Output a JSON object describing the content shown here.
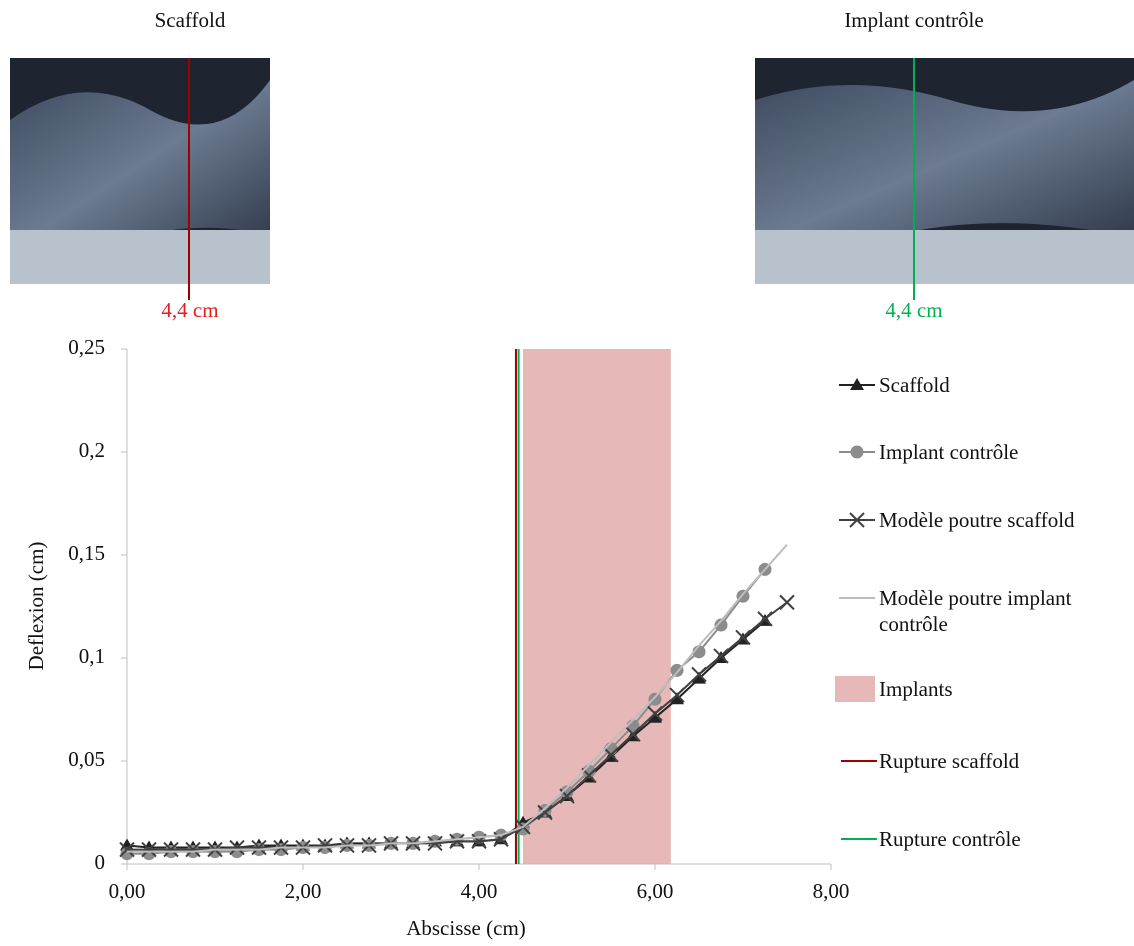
{
  "images": [
    {
      "title": "Scaffold",
      "label": "4,4 cm",
      "color": "#c00000"
    },
    {
      "title": "Implant contrôle",
      "label": "4,4 cm",
      "color": "#00b050"
    }
  ],
  "chart_data": {
    "type": "line",
    "x_label": "Abscisse (cm)",
    "y_label": "Deflexion (cm)",
    "x": [
      0,
      0.25,
      0.5,
      0.75,
      1,
      1.25,
      1.5,
      1.75,
      2,
      2.25,
      2.5,
      2.75,
      3,
      3.25,
      3.5,
      3.75,
      4,
      4.25,
      4.5,
      4.75,
      5,
      5.25,
      5.5,
      5.75,
      6,
      6.25,
      6.5,
      6.75,
      7,
      7.25,
      7.5
    ],
    "series": [
      {
        "name": "Scaffold",
        "color": "#222222",
        "marker": "triangle",
        "values": [
          0.009,
          0.008,
          0.008,
          0.008,
          0.008,
          0.008,
          0.009,
          0.009,
          0.009,
          0.009,
          0.01,
          0.01,
          0.01,
          0.01,
          0.011,
          0.011,
          0.011,
          0.012,
          0.02,
          0.025,
          0.033,
          0.042,
          0.052,
          0.062,
          0.071,
          0.08,
          0.09,
          0.1,
          0.109,
          0.118,
          null
        ]
      },
      {
        "name": "Implant contrôle",
        "color": "#8c8c8c",
        "marker": "circle",
        "values": [
          0.005,
          0.005,
          0.006,
          0.006,
          0.006,
          0.006,
          0.007,
          0.007,
          0.008,
          0.008,
          0.009,
          0.009,
          0.01,
          0.01,
          0.011,
          0.012,
          0.013,
          0.014,
          0.017,
          0.026,
          0.035,
          0.045,
          0.056,
          0.067,
          0.08,
          0.094,
          0.103,
          0.116,
          0.13,
          0.143,
          null
        ]
      },
      {
        "name": "Modèle poutre scaffold",
        "color": "#404040",
        "marker": "cross",
        "values": [
          0.007,
          0.007,
          0.007,
          0.007,
          0.007,
          0.008,
          0.008,
          0.008,
          0.008,
          0.009,
          0.009,
          0.009,
          0.01,
          0.01,
          0.01,
          0.011,
          0.011,
          0.012,
          0.018,
          0.025,
          0.033,
          0.043,
          0.053,
          0.063,
          0.073,
          0.082,
          0.092,
          0.101,
          0.11,
          0.119,
          0.127
        ]
      },
      {
        "name": "Modèle poutre implant contrôle",
        "color": "#bdbdbd",
        "marker": "none",
        "values": [
          0.006,
          0.006,
          0.006,
          0.006,
          0.007,
          0.007,
          0.007,
          0.008,
          0.008,
          0.008,
          0.009,
          0.009,
          0.01,
          0.01,
          0.011,
          0.012,
          0.013,
          0.014,
          0.018,
          0.027,
          0.037,
          0.048,
          0.059,
          0.07,
          0.081,
          0.093,
          0.106,
          0.118,
          0.131,
          0.143,
          0.155
        ]
      }
    ],
    "span": {
      "name": "Implants",
      "x": [
        4.5,
        6.18
      ],
      "color": "#e6b8b7"
    },
    "vlines": [
      {
        "name": "Rupture scaffold",
        "x": 4.42,
        "color": "#a00000"
      },
      {
        "name": "Rupture contrôle",
        "x": 4.45,
        "color": "#00b050"
      }
    ],
    "xlim": [
      0,
      8
    ],
    "ylim": [
      0,
      0.25
    ],
    "xticks": [
      {
        "value": 0,
        "label": "0,00"
      },
      {
        "value": 2,
        "label": "2,00"
      },
      {
        "value": 4,
        "label": "4,00"
      },
      {
        "value": 6,
        "label": "6,00"
      },
      {
        "value": 8,
        "label": "8,00"
      }
    ],
    "yticks": [
      0,
      {
        "value": 0.05,
        "label": "0,05"
      },
      {
        "value": 0.1,
        "label": "0,1"
      },
      {
        "value": 0.15,
        "label": "0,15"
      },
      {
        "value": 0.2,
        "label": "0,2"
      },
      {
        "value": 0.25,
        "label": "0,25"
      }
    ],
    "grid": false
  }
}
